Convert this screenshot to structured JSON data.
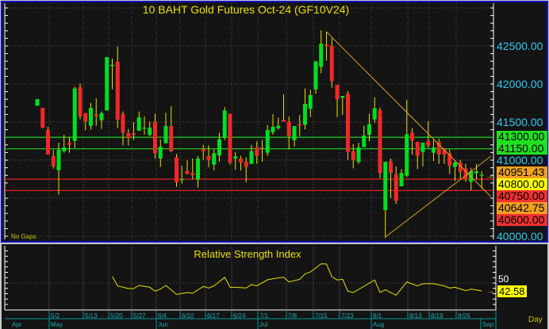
{
  "chart_data": {
    "type": "candlestick",
    "title": "10 BAHT Gold Futures Oct-24 (GF10V24)",
    "note": "No Gaps",
    "period_label": "Day",
    "ylim": [
      40000,
      43000
    ],
    "price_axis_labels": [
      "42500.00",
      "42000.00",
      "41500.00",
      "40000.00"
    ],
    "hidden_axis_label": "41000.00",
    "colors": {
      "up": "#00e020",
      "down": "#f02828",
      "wick": "#e8e000",
      "trendline": "#d8a020",
      "price_label": "#30c8f0",
      "title": "#e8e000"
    },
    "candles_ohlc": [
      [
        41715,
        41802,
        41715,
        41802
      ],
      [
        41687,
        41687,
        41420,
        41427
      ],
      [
        41399,
        41437,
        41073,
        41073
      ],
      [
        41056,
        41135,
        40889,
        40917
      ],
      [
        40868,
        41229,
        40545,
        41135
      ],
      [
        41118,
        41333,
        41097,
        41167
      ],
      [
        41229,
        41306,
        41097,
        41201
      ],
      [
        41253,
        41965,
        41160,
        41941
      ],
      [
        41958,
        42007,
        41535,
        41576
      ],
      [
        41618,
        41618,
        41392,
        41507
      ],
      [
        41451,
        41750,
        41399,
        41687
      ],
      [
        41601,
        41813,
        41451,
        41576
      ],
      [
        41524,
        41639,
        41410,
        41618
      ],
      [
        41653,
        42354,
        41653,
        42354
      ],
      [
        42236,
        42333,
        41931,
        42253
      ],
      [
        42292,
        42490,
        41420,
        41531
      ],
      [
        41608,
        41639,
        41191,
        41361
      ],
      [
        41358,
        41410,
        41191,
        41288
      ],
      [
        41351,
        41500,
        41264,
        41330
      ],
      [
        41389,
        41639,
        41378,
        41562
      ],
      [
        41420,
        41576,
        41333,
        41427
      ],
      [
        41330,
        41507,
        41316,
        41427
      ],
      [
        41507,
        41611,
        41021,
        41090
      ],
      [
        41021,
        41271,
        40910,
        41177
      ],
      [
        41222,
        41622,
        41222,
        41448
      ],
      [
        41448,
        41708,
        41108,
        41118
      ],
      [
        41038,
        41080,
        40649,
        40708
      ],
      [
        40743,
        40927,
        40691,
        40750
      ],
      [
        40858,
        40997,
        40812,
        40819
      ],
      [
        40830,
        41021,
        40750,
        40802
      ],
      [
        40743,
        41056,
        40639,
        41021
      ],
      [
        41149,
        41201,
        41003,
        41118
      ],
      [
        41056,
        41194,
        40906,
        41003
      ],
      [
        40941,
        41142,
        40865,
        41090
      ],
      [
        41062,
        41361,
        40979,
        41274
      ],
      [
        41292,
        41698,
        41264,
        41653
      ],
      [
        41611,
        41611,
        40941,
        40969
      ],
      [
        41021,
        41108,
        40875,
        41049
      ],
      [
        41021,
        41056,
        40865,
        40969
      ],
      [
        40979,
        41038,
        40708,
        40910
      ],
      [
        40951,
        41201,
        40951,
        41118
      ],
      [
        41167,
        41246,
        40951,
        41056
      ],
      [
        41167,
        41264,
        40979,
        41160
      ],
      [
        41097,
        41462,
        41056,
        41396
      ],
      [
        41368,
        41604,
        41333,
        41437
      ],
      [
        41420,
        41560,
        41400,
        41450
      ],
      [
        41531,
        41865,
        41507,
        41507
      ],
      [
        41507,
        41576,
        41142,
        41316
      ],
      [
        41264,
        41448,
        41177,
        41448
      ],
      [
        41472,
        41594,
        41316,
        41455
      ],
      [
        41465,
        41941,
        41403,
        41740
      ],
      [
        41674,
        41924,
        41566,
        41854
      ],
      [
        41931,
        42306,
        41872,
        42295
      ],
      [
        42226,
        42705,
        42142,
        42531
      ],
      [
        42521,
        42688,
        42306,
        42497
      ],
      [
        42503,
        42601,
        41951,
        42038
      ],
      [
        41990,
        41990,
        41566,
        41799
      ],
      [
        41819,
        41844,
        41594,
        41844
      ],
      [
        41872,
        41906,
        41003,
        41108
      ],
      [
        41118,
        41212,
        40892,
        41003
      ],
      [
        40976,
        41229,
        40951,
        41167
      ],
      [
        41170,
        41455,
        41170,
        41323
      ],
      [
        41333,
        41611,
        41247,
        41472
      ],
      [
        41535,
        41826,
        41490,
        41681
      ],
      [
        41656,
        41691,
        40760,
        40830
      ],
      [
        40344,
        40979,
        39979,
        40979
      ],
      [
        40986,
        41021,
        40500,
        40830
      ],
      [
        40812,
        40917,
        40424,
        40465
      ],
      [
        40656,
        40882,
        40656,
        40830
      ],
      [
        40795,
        41792,
        40778,
        41340
      ],
      [
        41358,
        41420,
        41073,
        41257
      ],
      [
        41240,
        41240,
        40882,
        41056
      ],
      [
        41108,
        41229,
        40917,
        41229
      ],
      [
        41247,
        41514,
        41160,
        41188
      ],
      [
        41097,
        41264,
        40986,
        41167
      ],
      [
        41240,
        41281,
        40951,
        41073
      ],
      [
        41149,
        41149,
        40951,
        41073
      ],
      [
        41090,
        41142,
        40819,
        40924
      ],
      [
        40910,
        40986,
        40726,
        40969
      ],
      [
        40969,
        41003,
        40760,
        40847
      ],
      [
        40892,
        40951,
        40715,
        40750
      ],
      [
        40715,
        40899,
        40604,
        40854
      ],
      [
        40830,
        40951,
        40743,
        40854
      ],
      [
        40800,
        40854,
        40622,
        40806
      ]
    ],
    "levels": [
      {
        "price": 41300,
        "label": "41300.00",
        "color": "#20c020",
        "label_bg": "#20e020"
      },
      {
        "price": 41150,
        "label": "41150.00",
        "color": "#20c020",
        "label_bg": "#20e020"
      },
      {
        "price": 40750,
        "label": "40750.00",
        "color": "#e02020",
        "label_bg": "#f03030"
      },
      {
        "price": 40600,
        "label": "40600.00",
        "color": "#e02020",
        "label_bg": "#f03030"
      }
    ],
    "price_tags": [
      {
        "label": "41300.00",
        "bg": "#20e020"
      },
      {
        "label": "41150.00",
        "bg": "#20e020"
      },
      {
        "label": "40951.43",
        "bg": "#f0a020"
      },
      {
        "label": "40800.00",
        "bg": "#ffff00"
      },
      {
        "label": "40750.00",
        "bg": "#f03030"
      },
      {
        "label": "40642.75",
        "bg": "#f0a020"
      },
      {
        "label": "40600.00",
        "bg": "#f03030"
      }
    ],
    "last_price": 40800,
    "trendlines": [
      {
        "from": [
          55,
          42687
        ],
        "to": [
          85.7,
          40521
        ]
      },
      {
        "from": [
          66,
          39990
        ],
        "to": [
          85.7,
          41052
        ]
      }
    ],
    "rsi": {
      "title": "Relative Strength Index",
      "axis_label": "50",
      "last_value": "42.58",
      "points": [
        [
          15,
          56.1
        ],
        [
          16,
          47.3
        ],
        [
          18,
          44.8
        ],
        [
          19,
          44.8
        ],
        [
          20,
          47.8
        ],
        [
          22,
          46
        ],
        [
          23,
          42.4
        ],
        [
          24,
          44.4
        ],
        [
          25,
          47.8
        ],
        [
          27,
          39.3
        ],
        [
          29,
          41.1
        ],
        [
          30,
          40.4
        ],
        [
          32,
          46.8
        ],
        [
          33,
          45.3
        ],
        [
          34,
          47.3
        ],
        [
          36,
          55.3
        ],
        [
          37,
          46
        ],
        [
          38,
          46
        ],
        [
          40,
          45.3
        ],
        [
          41,
          48.6
        ],
        [
          42,
          47.3
        ],
        [
          44,
          53
        ],
        [
          46,
          54.8
        ],
        [
          47,
          55.3
        ],
        [
          48,
          51
        ],
        [
          50,
          53.5
        ],
        [
          51,
          58.5
        ],
        [
          52,
          60.3
        ],
        [
          54,
          68
        ],
        [
          55,
          67.8
        ],
        [
          56,
          56
        ],
        [
          57,
          52.8
        ],
        [
          58,
          53.5
        ],
        [
          59,
          42.4
        ],
        [
          60,
          41.1
        ],
        [
          64,
          52.8
        ],
        [
          65,
          41.1
        ],
        [
          66,
          43.6
        ],
        [
          68,
          38.6
        ],
        [
          70,
          51
        ],
        [
          72,
          47.3
        ],
        [
          73,
          49.3
        ],
        [
          75,
          49.3
        ],
        [
          77,
          47.3
        ],
        [
          78,
          45.3
        ],
        [
          79,
          46
        ],
        [
          81,
          42.9
        ],
        [
          82,
          44.4
        ],
        [
          84,
          42.58
        ]
      ]
    },
    "x_axis": {
      "dates": [
        "5/2",
        "5/13",
        "5/20",
        "5/27",
        "6/4",
        "6/10",
        "6/17",
        "6/24",
        "7/1",
        "7/8",
        "7/15",
        "7/23",
        "8/1",
        "8/13",
        "8/19",
        "8/26"
      ],
      "months": [
        "Apr",
        "May",
        "Jun",
        "Jul",
        "Aug",
        "Sep"
      ]
    }
  }
}
